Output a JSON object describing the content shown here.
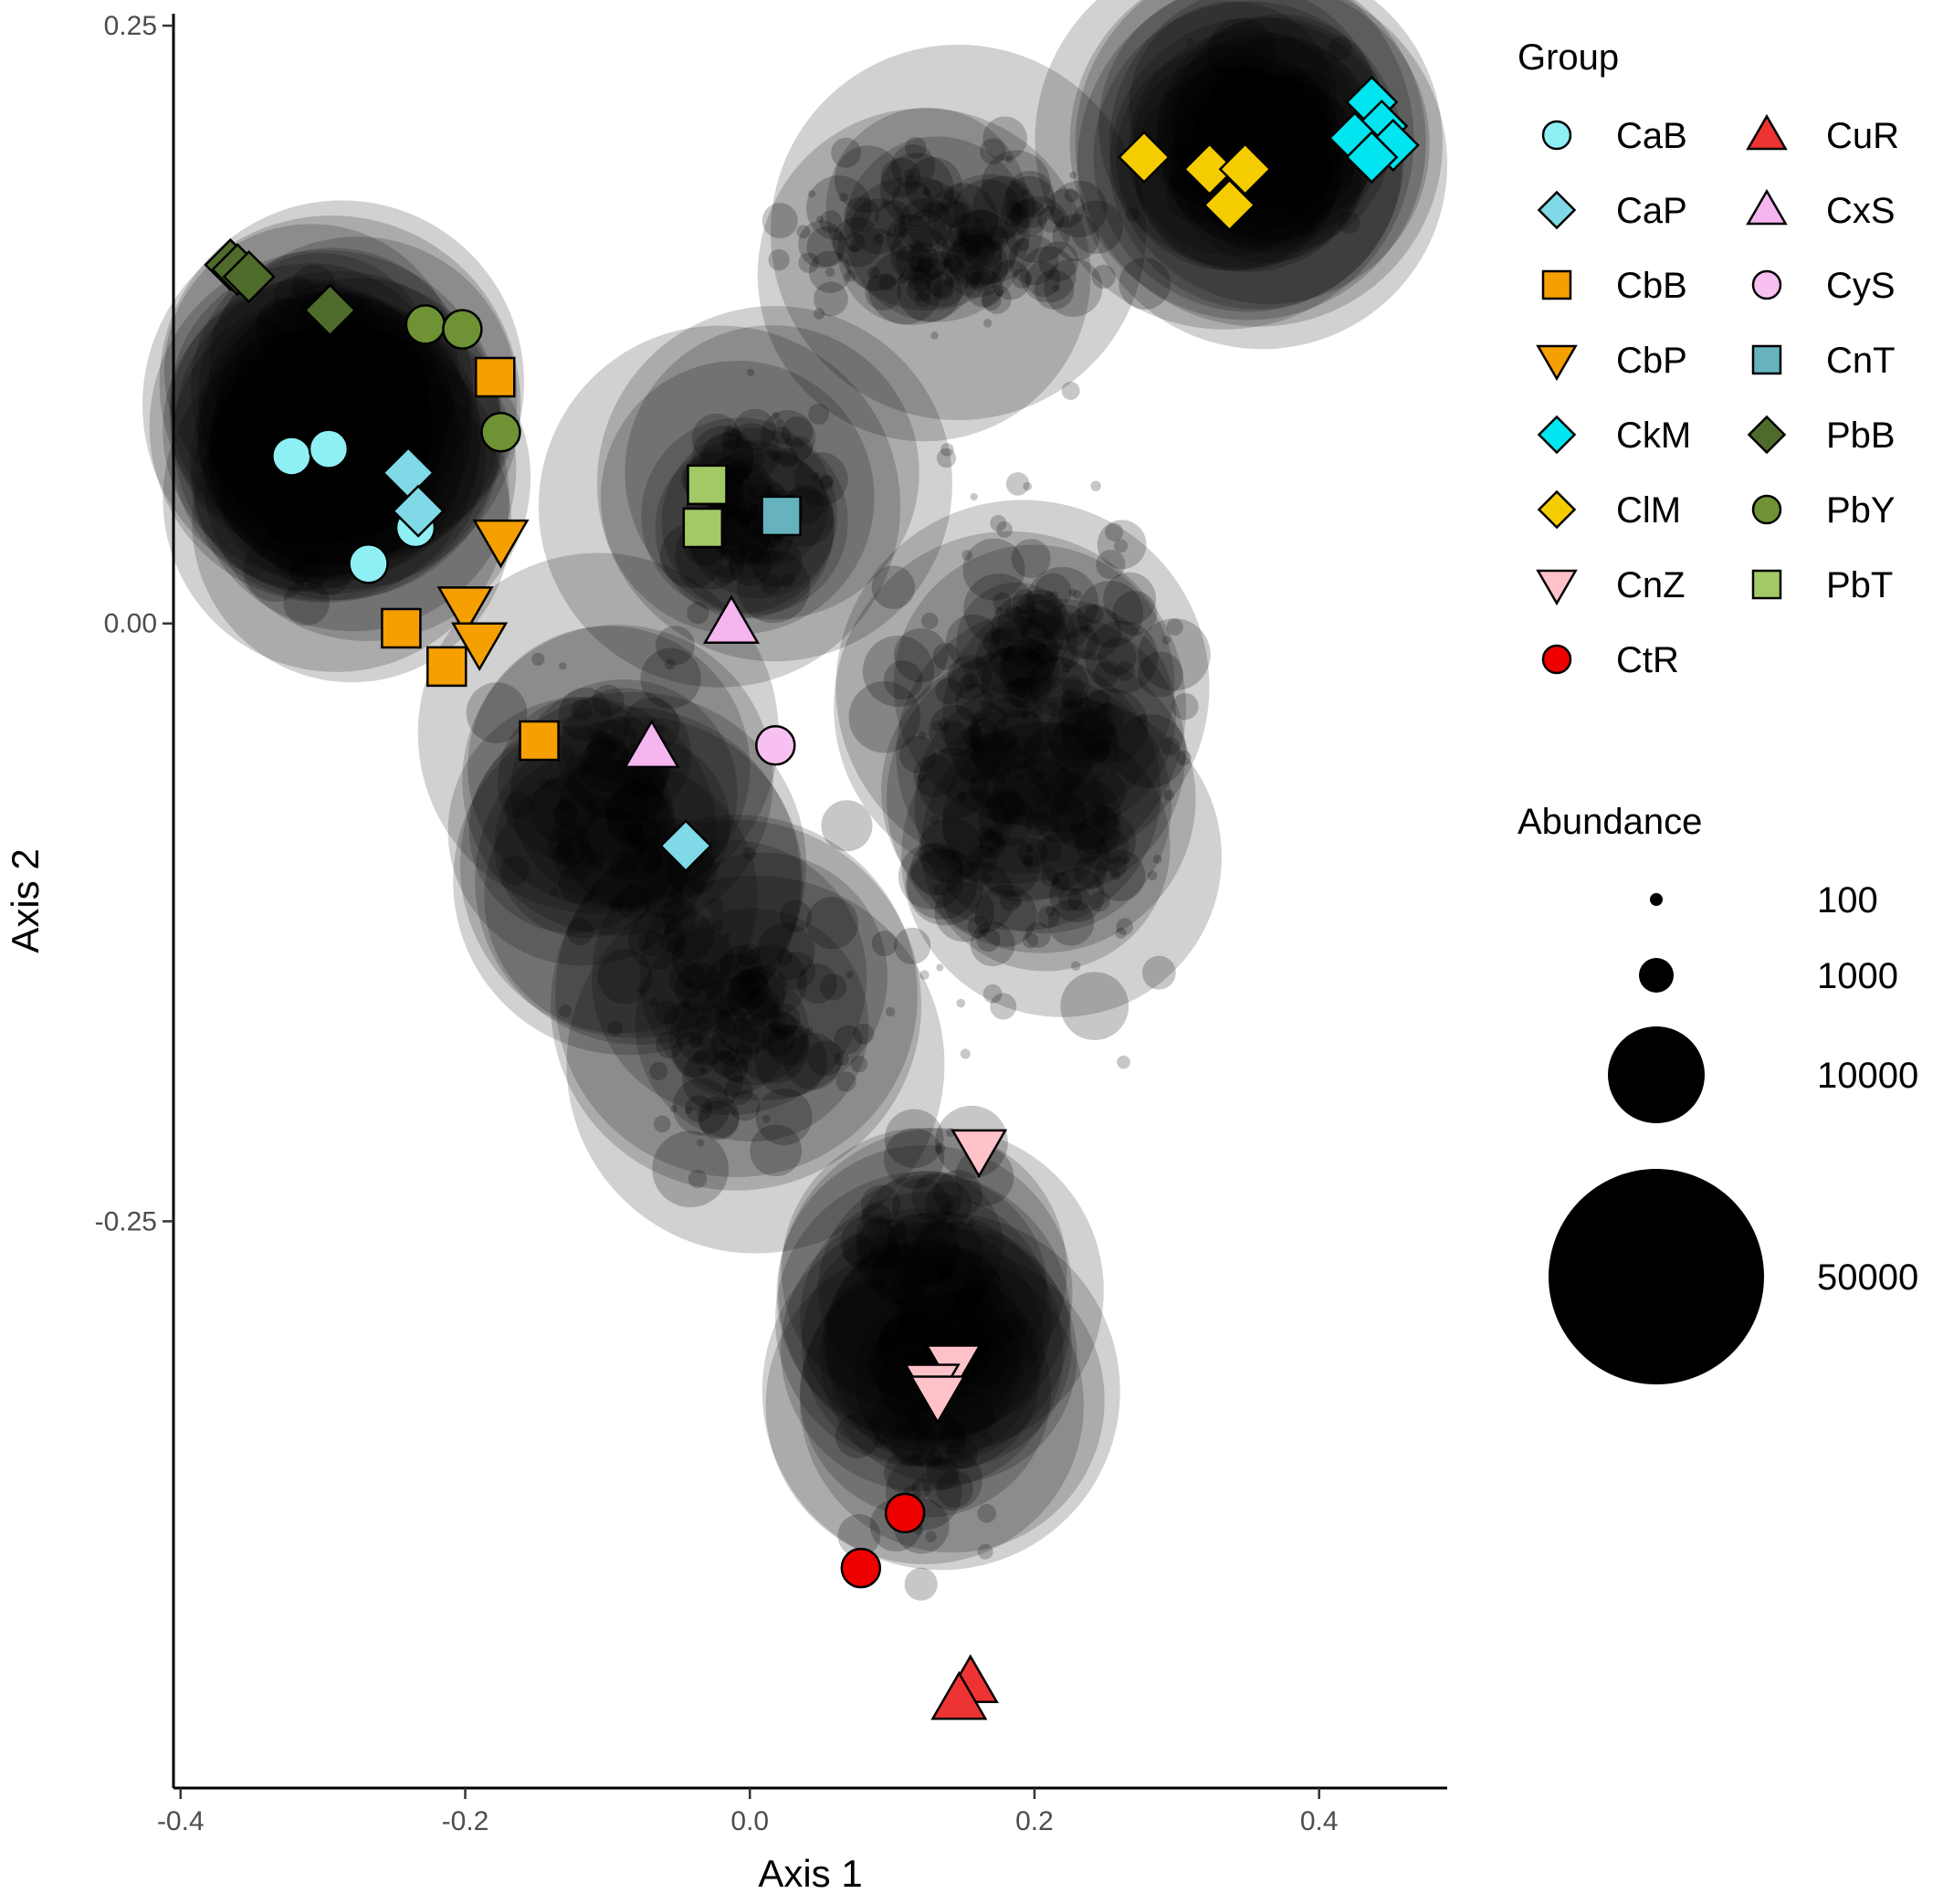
{
  "chart_data": {
    "type": "scatter",
    "title": "",
    "xlabel": "Axis 1",
    "ylabel": "Axis 2",
    "xlim": [
      -0.405,
      0.49
    ],
    "ylim": [
      -0.487,
      0.255
    ],
    "x_ticks": [
      "-0.4",
      "-0.2",
      "0.0",
      "0.2",
      "0.4"
    ],
    "x_tick_values": [
      -0.4,
      -0.2,
      0.0,
      0.2,
      0.4
    ],
    "y_ticks": [
      "0.25",
      "0.00",
      "-0.25"
    ],
    "y_tick_values": [
      0.25,
      0.0,
      -0.25
    ],
    "grid": false,
    "legend_position": "right",
    "groups_legend_title": "Group",
    "size_legend_title": "Abundance",
    "size_legend": [
      {
        "label": "100",
        "value": 100
      },
      {
        "label": "1000",
        "value": 1000
      },
      {
        "label": "10000",
        "value": 10000
      },
      {
        "label": "50000",
        "value": 50000
      }
    ],
    "abundance_clusters": [
      {
        "x": -0.29,
        "y": 0.08,
        "big": 30,
        "small": 90,
        "spreadx": 0.09,
        "spready": 0.09
      },
      {
        "x": 0.355,
        "y": 0.2,
        "big": 24,
        "small": 50,
        "spreadx": 0.07,
        "spready": 0.05
      },
      {
        "x": 0.13,
        "y": -0.3,
        "big": 18,
        "small": 110,
        "spreadx": 0.07,
        "spready": 0.13
      },
      {
        "x": -0.1,
        "y": -0.08,
        "big": 14,
        "small": 70,
        "spreadx": 0.1,
        "spready": 0.11
      },
      {
        "x": 0.0,
        "y": 0.05,
        "big": 10,
        "small": 70,
        "spreadx": 0.07,
        "spready": 0.06
      },
      {
        "x": 0.14,
        "y": 0.16,
        "big": 6,
        "small": 120,
        "spreadx": 0.18,
        "spready": 0.05
      },
      {
        "x": 0.2,
        "y": -0.05,
        "big": 12,
        "small": 220,
        "spreadx": 0.14,
        "spready": 0.16
      },
      {
        "x": 0.0,
        "y": -0.17,
        "big": 8,
        "small": 90,
        "spreadx": 0.12,
        "spready": 0.08
      }
    ],
    "series": [
      {
        "name": "CaB",
        "shape": "circle",
        "fill": "#8ef0f5",
        "points": [
          [
            -0.322,
            0.07
          ],
          [
            -0.296,
            0.073
          ],
          [
            -0.235,
            0.04
          ],
          [
            -0.268,
            0.025
          ]
        ]
      },
      {
        "name": "CaP",
        "shape": "diamond",
        "fill": "#7fd9e6",
        "points": [
          [
            -0.24,
            0.063
          ],
          [
            -0.233,
            0.047
          ],
          [
            -0.045,
            -0.093
          ]
        ]
      },
      {
        "name": "CbB",
        "shape": "square",
        "fill": "#f5a000",
        "points": [
          [
            -0.179,
            0.103
          ],
          [
            -0.245,
            -0.002
          ],
          [
            -0.213,
            -0.018
          ],
          [
            -0.148,
            -0.049
          ]
        ]
      },
      {
        "name": "CbP",
        "shape": "triangle-down",
        "fill": "#f5a000",
        "points": [
          [
            -0.175,
            0.035
          ],
          [
            -0.2,
            0.007
          ],
          [
            -0.19,
            -0.008
          ]
        ]
      },
      {
        "name": "CkM",
        "shape": "diamond",
        "fill": "#00e5ef",
        "points": [
          [
            0.437,
            0.218
          ],
          [
            0.444,
            0.208
          ],
          [
            0.425,
            0.203
          ],
          [
            0.452,
            0.2
          ],
          [
            0.437,
            0.195
          ]
        ]
      },
      {
        "name": "ClM",
        "shape": "diamond",
        "fill": "#f5cc00",
        "points": [
          [
            0.277,
            0.195
          ],
          [
            0.323,
            0.19
          ],
          [
            0.348,
            0.19
          ],
          [
            0.337,
            0.175
          ]
        ]
      },
      {
        "name": "CnZ",
        "shape": "triangle-down",
        "fill": "#ffc2c8",
        "points": [
          [
            0.161,
            -0.22
          ],
          [
            0.143,
            -0.31
          ],
          [
            0.128,
            -0.318
          ],
          [
            0.132,
            -0.323
          ]
        ]
      },
      {
        "name": "CtR",
        "shape": "circle",
        "fill": "#ee0000",
        "points": [
          [
            0.109,
            -0.372
          ],
          [
            0.078,
            -0.395
          ]
        ]
      },
      {
        "name": "CuR",
        "shape": "triangle-up",
        "fill": "#ee3333",
        "points": [
          [
            0.155,
            -0.443
          ],
          [
            0.147,
            -0.45
          ]
        ]
      },
      {
        "name": "CxS",
        "shape": "triangle-up",
        "fill": "#f5b6f0",
        "points": [
          [
            -0.013,
            0.0
          ],
          [
            -0.069,
            -0.052
          ]
        ]
      },
      {
        "name": "CyS",
        "shape": "circle",
        "fill": "#f7c0f0",
        "points": [
          [
            0.018,
            -0.051
          ]
        ]
      },
      {
        "name": "CnT",
        "shape": "square",
        "fill": "#66b3bf",
        "points": [
          [
            0.022,
            0.045
          ]
        ]
      },
      {
        "name": "PbB",
        "shape": "diamond",
        "fill": "#4f6b2b",
        "points": [
          [
            -0.365,
            0.15
          ],
          [
            -0.36,
            0.148
          ],
          [
            -0.352,
            0.145
          ],
          [
            -0.295,
            0.131
          ]
        ]
      },
      {
        "name": "PbY",
        "shape": "circle",
        "fill": "#6e9234",
        "points": [
          [
            -0.228,
            0.125
          ],
          [
            -0.202,
            0.123
          ],
          [
            -0.175,
            0.08
          ]
        ]
      },
      {
        "name": "PbT",
        "shape": "square",
        "fill": "#a2c966",
        "points": [
          [
            -0.03,
            0.058
          ],
          [
            -0.033,
            0.04
          ]
        ]
      }
    ]
  }
}
